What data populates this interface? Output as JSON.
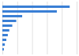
{
  "chart_data": {
    "type": "bar",
    "orientation": "horizontal",
    "categories": [
      null,
      null,
      null,
      null,
      null,
      null,
      null,
      null,
      null,
      null
    ],
    "values": [
      68000,
      55000,
      20000,
      14000,
      10000,
      7000,
      5500,
      4000,
      2500,
      1500
    ],
    "color": "#3a7fd5",
    "xlim": [
      0,
      75000
    ],
    "xticks": [
      0,
      15000,
      30000,
      45000,
      60000,
      75000
    ],
    "grid": true,
    "tick_labels": false
  }
}
